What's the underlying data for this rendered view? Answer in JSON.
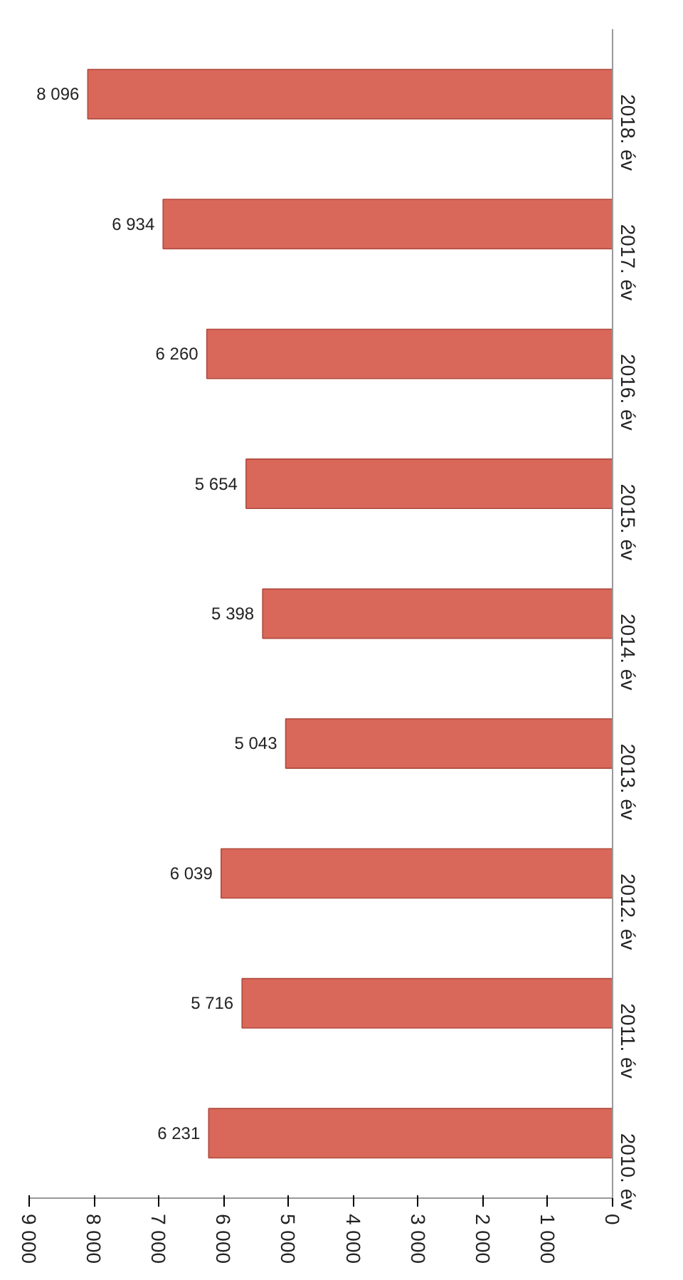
{
  "chart_data": {
    "type": "bar",
    "orientation": "horizontal",
    "categories": [
      "2018. év",
      "2017. év",
      "2016. év",
      "2015. év",
      "2014. év",
      "2013. év",
      "2012. év",
      "2011. év",
      "2010. év"
    ],
    "values": [
      8096,
      6934,
      6260,
      5654,
      5398,
      5043,
      6039,
      5716,
      6231
    ],
    "color": "#d9685a",
    "data_labels": true,
    "xlim": [
      9000,
      0
    ],
    "xticks": [
      {
        "value": 9000,
        "label": "9 000"
      },
      {
        "value": 8000,
        "label": "8 000"
      },
      {
        "value": 7000,
        "label": "7 000"
      },
      {
        "value": 6000,
        "label": "6 000"
      },
      {
        "value": 5000,
        "label": "5 000"
      },
      {
        "value": 4000,
        "label": "4 000"
      },
      {
        "value": 3000,
        "label": "3 000"
      },
      {
        "value": 2000,
        "label": "2 000"
      },
      {
        "value": 1000,
        "label": "1 000"
      },
      {
        "value": 0,
        "label": "0"
      }
    ],
    "grid": false
  }
}
